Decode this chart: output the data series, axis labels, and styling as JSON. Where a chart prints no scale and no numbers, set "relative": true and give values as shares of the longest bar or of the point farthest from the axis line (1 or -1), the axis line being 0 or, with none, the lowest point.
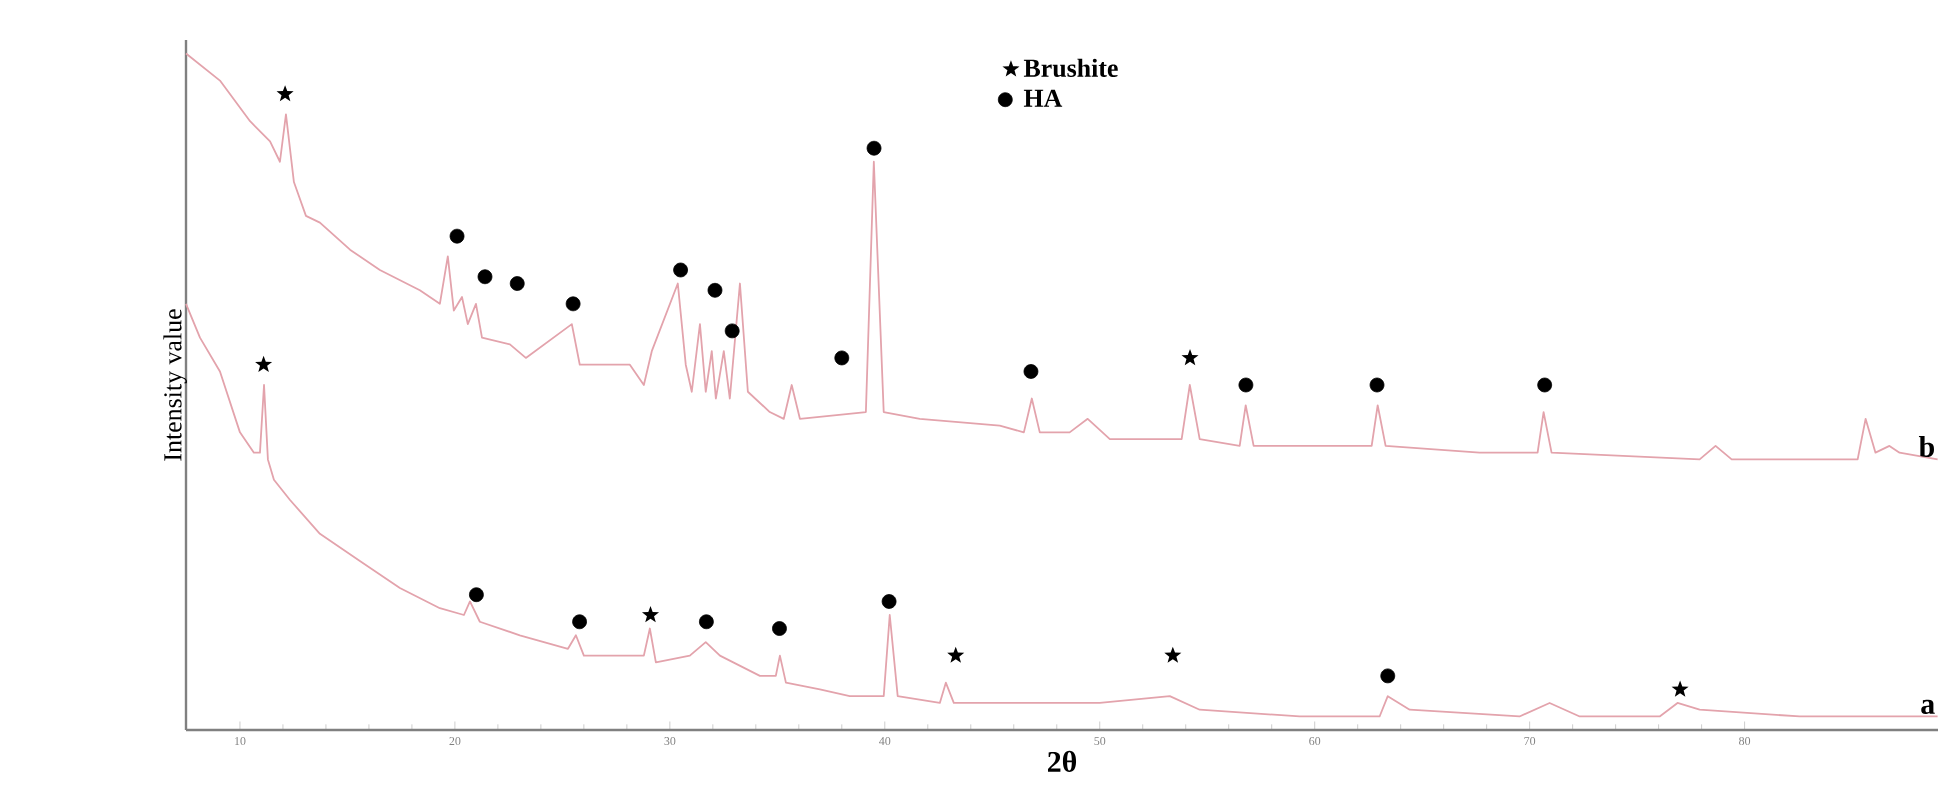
{
  "chart_data": {
    "type": "line",
    "relative": true,
    "xlabel": "2θ",
    "ylabel": "Intensity value",
    "xlim": [
      7.49,
      89
    ],
    "xticks": [
      10,
      20,
      30,
      40,
      50,
      60,
      70,
      80
    ],
    "legend": "top",
    "series": [
      {
        "name": "b",
        "color": "#e3a3ac",
        "x": [
          7.49,
          9.07,
          10.47,
          11.4,
          11.86,
          12.14,
          12.51,
          13.07,
          13.72,
          15.12,
          16.51,
          18.37,
          19.3,
          19.67,
          19.95,
          20.33,
          20.6,
          20.98,
          21.26,
          22.56,
          23.3,
          25.44,
          25.81,
          26.74,
          28.14,
          28.79,
          29.16,
          30.37,
          30.74,
          31.02,
          31.4,
          31.67,
          31.95,
          32.14,
          32.51,
          32.79,
          33.26,
          33.63,
          34.65,
          35.3,
          35.67,
          36.05,
          39.12,
          39.49,
          39.95,
          41.63,
          45.35,
          46.47,
          46.84,
          47.21,
          48.6,
          49.44,
          50.47,
          52.79,
          53.81,
          54.19,
          54.65,
          56.51,
          56.79,
          57.16,
          59.3,
          62.65,
          62.93,
          63.3,
          67.67,
          70.37,
          70.65,
          71.02,
          77.91,
          78.65,
          79.4,
          85.26,
          85.63,
          86.09,
          86.74,
          87.21,
          88.98
        ],
        "values": [
          1.0,
          0.96,
          0.9,
          0.87,
          0.84,
          0.91,
          0.81,
          0.76,
          0.75,
          0.71,
          0.68,
          0.65,
          0.63,
          0.7,
          0.62,
          0.64,
          0.6,
          0.63,
          0.58,
          0.57,
          0.55,
          0.6,
          0.54,
          0.54,
          0.54,
          0.51,
          0.56,
          0.66,
          0.54,
          0.5,
          0.6,
          0.5,
          0.56,
          0.49,
          0.56,
          0.49,
          0.66,
          0.5,
          0.47,
          0.46,
          0.51,
          0.46,
          0.47,
          0.84,
          0.47,
          0.46,
          0.45,
          0.44,
          0.49,
          0.44,
          0.44,
          0.46,
          0.43,
          0.43,
          0.43,
          0.51,
          0.43,
          0.42,
          0.48,
          0.42,
          0.42,
          0.42,
          0.48,
          0.42,
          0.41,
          0.41,
          0.47,
          0.41,
          0.4,
          0.42,
          0.4,
          0.4,
          0.46,
          0.41,
          0.42,
          0.41,
          0.4
        ]
      },
      {
        "name": "a",
        "color": "#e3a3ac",
        "x": [
          7.49,
          8.14,
          9.07,
          10.0,
          10.65,
          10.93,
          11.12,
          11.3,
          11.58,
          12.33,
          13.72,
          15.58,
          17.44,
          19.3,
          20.42,
          20.7,
          21.16,
          23.02,
          25.26,
          25.63,
          26.0,
          27.67,
          28.79,
          29.07,
          29.35,
          30.93,
          31.67,
          32.33,
          34.19,
          34.93,
          35.12,
          35.4,
          36.98,
          38.37,
          39.95,
          40.23,
          40.6,
          42.56,
          42.84,
          43.21,
          45.35,
          50.0,
          53.26,
          54.65,
          59.3,
          63.02,
          63.4,
          64.42,
          69.53,
          70.93,
          72.33,
          76.05,
          76.88,
          77.91,
          82.56,
          88.98
        ],
        "values": [
          0.63,
          0.58,
          0.53,
          0.44,
          0.41,
          0.41,
          0.51,
          0.4,
          0.37,
          0.34,
          0.29,
          0.25,
          0.21,
          0.18,
          0.17,
          0.19,
          0.16,
          0.14,
          0.12,
          0.14,
          0.11,
          0.11,
          0.11,
          0.15,
          0.1,
          0.11,
          0.13,
          0.11,
          0.08,
          0.08,
          0.11,
          0.07,
          0.06,
          0.05,
          0.05,
          0.17,
          0.05,
          0.04,
          0.07,
          0.04,
          0.04,
          0.04,
          0.05,
          0.03,
          0.02,
          0.02,
          0.05,
          0.03,
          0.02,
          0.04,
          0.02,
          0.02,
          0.04,
          0.03,
          0.02,
          0.02
        ]
      },
      {
        "name": "Brushite",
        "type": "scatter",
        "marker": "star",
        "color": "#000000",
        "x": [
          12.1,
          54.2,
          11.1,
          29.1,
          43.3,
          53.4,
          77.0
        ],
        "values": [
          0.94,
          0.55,
          0.54,
          0.17,
          0.11,
          0.11,
          0.06
        ]
      },
      {
        "name": "HA",
        "type": "scatter",
        "marker": "circle",
        "color": "#000000",
        "x": [
          20.1,
          21.4,
          22.9,
          25.5,
          30.5,
          32.1,
          32.9,
          38.0,
          39.5,
          46.8,
          56.8,
          62.9,
          70.7,
          21.0,
          25.8,
          31.7,
          35.1,
          40.2,
          63.4
        ],
        "values": [
          0.73,
          0.67,
          0.66,
          0.63,
          0.68,
          0.65,
          0.59,
          0.55,
          0.86,
          0.53,
          0.51,
          0.51,
          0.51,
          0.2,
          0.16,
          0.16,
          0.15,
          0.19,
          0.08
        ]
      }
    ]
  }
}
